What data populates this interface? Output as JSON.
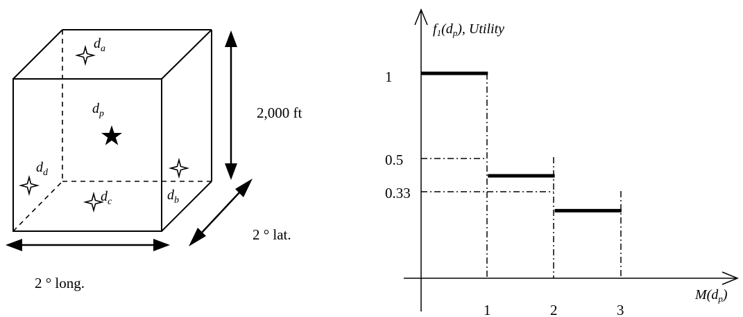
{
  "cube": {
    "points": [
      {
        "name": "a",
        "label": "d",
        "sub": "a"
      },
      {
        "name": "p",
        "label": "d",
        "sub": "p"
      },
      {
        "name": "d",
        "label": "d",
        "sub": "d"
      },
      {
        "name": "c",
        "label": "d",
        "sub": "c"
      },
      {
        "name": "b",
        "label": "d",
        "sub": "b"
      }
    ],
    "height_label": "2,000 ft",
    "lat_label": "2 ° lat.",
    "long_label": "2 ° long."
  },
  "chart_data": {
    "type": "step",
    "title": "",
    "ylabel": {
      "f": "f",
      "f_sub": "1",
      "arg_open": "(d",
      "arg_sub": "p",
      "arg_close": "), Utility"
    },
    "xlabel": {
      "M": "M(d",
      "sub": "p",
      "close": ")"
    },
    "x_ticks": [
      "1",
      "2",
      "3"
    ],
    "y_ticks": [
      "1",
      "0.5",
      "0.33"
    ],
    "segments": [
      {
        "x0": 0,
        "x1": 1,
        "y": 1
      },
      {
        "x0": 1,
        "x1": 2,
        "y": 0.5
      },
      {
        "x0": 2,
        "x1": 3,
        "y": 0.33
      }
    ]
  }
}
